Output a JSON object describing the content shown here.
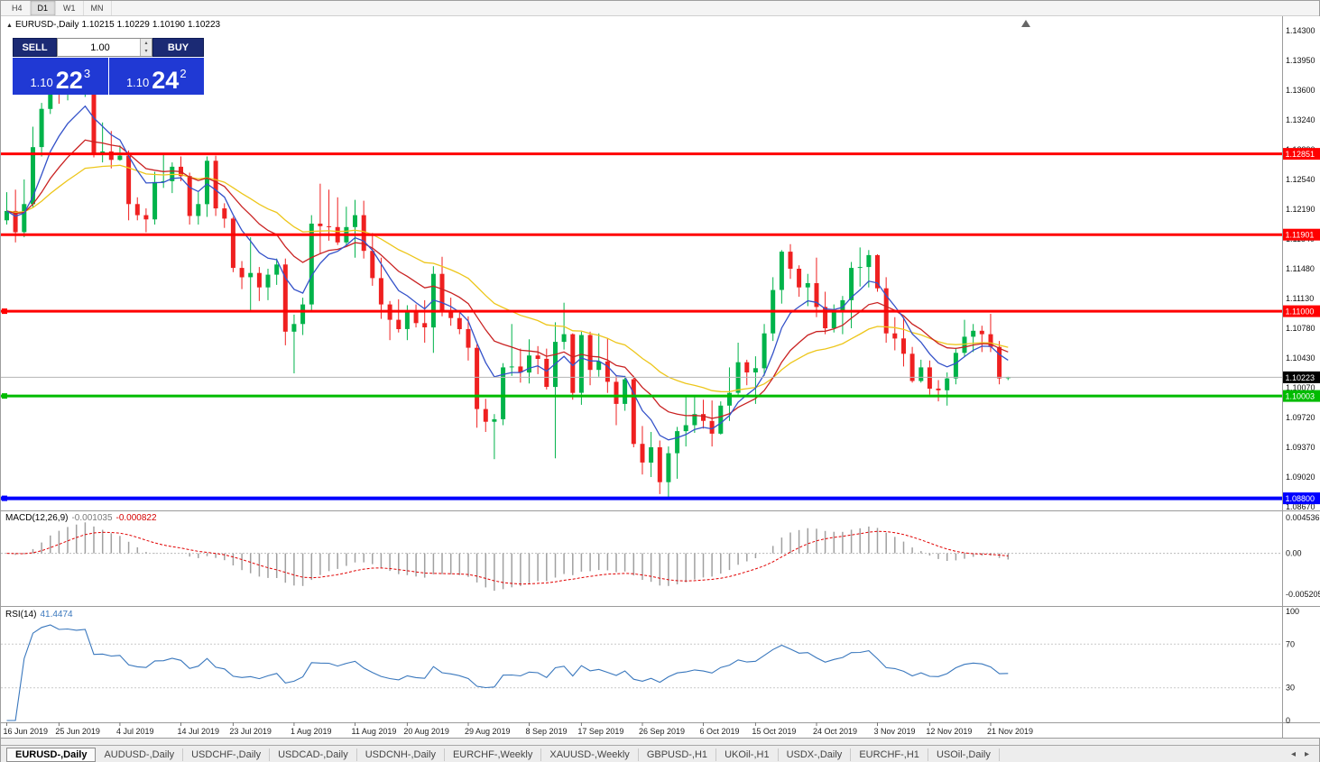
{
  "window": {
    "periods": [
      {
        "label": "H4",
        "active": false
      },
      {
        "label": "D1",
        "active": true
      },
      {
        "label": "W1",
        "active": false
      },
      {
        "label": "MN",
        "active": false
      }
    ]
  },
  "chart": {
    "info": {
      "symbol": "EURUSD-,Daily",
      "open": "1.10215",
      "high": "1.10229",
      "low": "1.10190",
      "close": "1.10223"
    },
    "trade_panel": {
      "sell_label": "SELL",
      "buy_label": "BUY",
      "volume": "1.00",
      "sell_price": {
        "prefix": "1.10",
        "big": "22",
        "sup": "3"
      },
      "buy_price": {
        "prefix": "1.10",
        "big": "24",
        "sup": "2"
      }
    }
  },
  "chart_data": {
    "type": "candlestick",
    "title": "EURUSD-,Daily",
    "colors": {
      "bull": "#00b34a",
      "bear": "#ef2020"
    },
    "price_axis": {
      "top_value": 1.143,
      "label_step": 0.0035,
      "labels": [
        "1.14300",
        "1.13950",
        "1.13600",
        "1.13240",
        "1.12890",
        "1.12540",
        "1.12190",
        "1.11840",
        "1.11480",
        "1.11130",
        "1.10780",
        "1.10430",
        "1.10070",
        "1.09720",
        "1.09370",
        "1.09020",
        "1.08670"
      ]
    },
    "date_ticks": [
      {
        "label": "16 Jun 2019",
        "bar": 0
      },
      {
        "label": "25 Jun 2019",
        "bar": 6
      },
      {
        "label": "4 Jul 2019",
        "bar": 13
      },
      {
        "label": "14 Jul 2019",
        "bar": 20
      },
      {
        "label": "23 Jul 2019",
        "bar": 26
      },
      {
        "label": "1 Aug 2019",
        "bar": 33
      },
      {
        "label": "11 Aug 2019",
        "bar": 40
      },
      {
        "label": "20 Aug 2019",
        "bar": 46
      },
      {
        "label": "29 Aug 2019",
        "bar": 53
      },
      {
        "label": "8 Sep 2019",
        "bar": 60
      },
      {
        "label": "17 Sep 2019",
        "bar": 66
      },
      {
        "label": "26 Sep 2019",
        "bar": 73
      },
      {
        "label": "6 Oct 2019",
        "bar": 80
      },
      {
        "label": "15 Oct 2019",
        "bar": 86
      },
      {
        "label": "24 Oct 2019",
        "bar": 93
      },
      {
        "label": "3 Nov 2019",
        "bar": 100
      },
      {
        "label": "12 Nov 2019",
        "bar": 106
      },
      {
        "label": "21 Nov 2019",
        "bar": 113
      }
    ],
    "ohlc": [
      [
        1.1207,
        1.124,
        1.1202,
        1.1218
      ],
      [
        1.1218,
        1.1243,
        1.1181,
        1.1193
      ],
      [
        1.1193,
        1.1255,
        1.1187,
        1.1226
      ],
      [
        1.1226,
        1.1317,
        1.1222,
        1.1293
      ],
      [
        1.1293,
        1.1345,
        1.1282,
        1.1338
      ],
      [
        1.1338,
        1.138,
        1.1332,
        1.137
      ],
      [
        1.137,
        1.139,
        1.1344,
        1.136
      ],
      [
        1.136,
        1.1382,
        1.1348,
        1.1365
      ],
      [
        1.1365,
        1.138,
        1.1355,
        1.1362
      ],
      [
        1.1362,
        1.1385,
        1.1352,
        1.1372
      ],
      [
        1.1372,
        1.1375,
        1.1281,
        1.1285
      ],
      [
        1.1285,
        1.1322,
        1.1275,
        1.1288
      ],
      [
        1.1288,
        1.1312,
        1.1268,
        1.1278
      ],
      [
        1.1278,
        1.1295,
        1.1277,
        1.1283
      ],
      [
        1.1283,
        1.1289,
        1.1207,
        1.1226
      ],
      [
        1.1226,
        1.1234,
        1.1207,
        1.1213
      ],
      [
        1.1213,
        1.1221,
        1.1193,
        1.1208
      ],
      [
        1.1208,
        1.1264,
        1.1202,
        1.1252
      ],
      [
        1.1252,
        1.1285,
        1.1245,
        1.1253
      ],
      [
        1.1253,
        1.1275,
        1.1239,
        1.127
      ],
      [
        1.127,
        1.1282,
        1.1253,
        1.1259
      ],
      [
        1.1259,
        1.1263,
        1.1202,
        1.1212
      ],
      [
        1.1212,
        1.124,
        1.1202,
        1.1226
      ],
      [
        1.1226,
        1.1282,
        1.1211,
        1.1277
      ],
      [
        1.1277,
        1.1283,
        1.1212,
        1.1221
      ],
      [
        1.1221,
        1.1227,
        1.1198,
        1.1209
      ],
      [
        1.1209,
        1.1211,
        1.1146,
        1.1151
      ],
      [
        1.1151,
        1.1159,
        1.1126,
        1.114
      ],
      [
        1.114,
        1.1187,
        1.1101,
        1.1145
      ],
      [
        1.1145,
        1.1152,
        1.1112,
        1.1128
      ],
      [
        1.1128,
        1.115,
        1.1113,
        1.1143
      ],
      [
        1.1143,
        1.1162,
        1.1131,
        1.1155
      ],
      [
        1.1155,
        1.1162,
        1.106,
        1.1076
      ],
      [
        1.1076,
        1.1096,
        1.1027,
        1.1085
      ],
      [
        1.1085,
        1.1116,
        1.1072,
        1.1108
      ],
      [
        1.1108,
        1.1213,
        1.1101,
        1.1203
      ],
      [
        1.1203,
        1.125,
        1.1167,
        1.12
      ],
      [
        1.12,
        1.1243,
        1.1183,
        1.1199
      ],
      [
        1.1199,
        1.1234,
        1.1178,
        1.1181
      ],
      [
        1.1181,
        1.1223,
        1.1178,
        1.1199
      ],
      [
        1.1199,
        1.1231,
        1.1163,
        1.1213
      ],
      [
        1.1213,
        1.123,
        1.1162,
        1.1171
      ],
      [
        1.1171,
        1.1192,
        1.113,
        1.1139
      ],
      [
        1.1139,
        1.1163,
        1.1091,
        1.1108
      ],
      [
        1.1108,
        1.1112,
        1.1066,
        1.109
      ],
      [
        1.109,
        1.1114,
        1.1075,
        1.1079
      ],
      [
        1.1079,
        1.1107,
        1.1066,
        1.11
      ],
      [
        1.11,
        1.1108,
        1.1081,
        1.1086
      ],
      [
        1.1086,
        1.1113,
        1.1063,
        1.1081
      ],
      [
        1.1081,
        1.1153,
        1.1051,
        1.1144
      ],
      [
        1.1144,
        1.1164,
        1.1094,
        1.1101
      ],
      [
        1.1101,
        1.1116,
        1.1083,
        1.1092
      ],
      [
        1.1092,
        1.1098,
        1.1073,
        1.1079
      ],
      [
        1.1079,
        1.1094,
        1.1042,
        1.1057
      ],
      [
        1.1057,
        1.1061,
        1.0963,
        1.0985
      ],
      [
        1.0985,
        1.0997,
        1.0958,
        1.097
      ],
      [
        1.097,
        1.0979,
        1.0926,
        1.0973
      ],
      [
        1.0973,
        1.1039,
        1.0966,
        1.1034
      ],
      [
        1.1034,
        1.1085,
        1.1024,
        1.1035
      ],
      [
        1.1035,
        1.1056,
        1.1016,
        1.1028
      ],
      [
        1.1028,
        1.1067,
        1.1015,
        1.1048
      ],
      [
        1.1048,
        1.1059,
        1.1026,
        1.1044
      ],
      [
        1.1044,
        1.1056,
        1.1008,
        1.1011
      ],
      [
        1.1011,
        1.1087,
        1.0927,
        1.1064
      ],
      [
        1.1064,
        1.111,
        1.1055,
        1.1073
      ],
      [
        1.1073,
        1.1074,
        1.0996,
        1.1004
      ],
      [
        1.1004,
        1.1076,
        1.099,
        1.1072
      ],
      [
        1.1072,
        1.1076,
        1.1013,
        1.1031
      ],
      [
        1.1031,
        1.1074,
        1.1023,
        1.1041
      ],
      [
        1.1041,
        1.1068,
        1.1004,
        1.1017
      ],
      [
        1.1017,
        1.1025,
        1.0966,
        1.0991
      ],
      [
        1.0991,
        1.1024,
        1.0983,
        1.102
      ],
      [
        1.102,
        1.1024,
        1.094,
        1.0944
      ],
      [
        1.0944,
        1.0965,
        1.0908,
        1.0922
      ],
      [
        1.0922,
        1.0958,
        1.0905,
        1.094
      ],
      [
        1.094,
        1.0948,
        1.0885,
        1.0899
      ],
      [
        1.0899,
        1.0941,
        1.0879,
        1.0933
      ],
      [
        1.0933,
        1.0964,
        1.0903,
        1.0959
      ],
      [
        1.0959,
        1.0999,
        1.0941,
        1.0966
      ],
      [
        1.0966,
        1.0999,
        1.0957,
        1.0979
      ],
      [
        1.0979,
        1.0996,
        1.0962,
        1.0971
      ],
      [
        1.0971,
        1.0995,
        1.0941,
        1.0956
      ],
      [
        1.0956,
        1.0994,
        1.0955,
        1.0989
      ],
      [
        1.0989,
        1.1034,
        1.0971,
        1.1004
      ],
      [
        1.1004,
        1.1063,
        1.1002,
        1.104
      ],
      [
        1.104,
        1.1043,
        1.1013,
        1.1028
      ],
      [
        1.1028,
        1.1047,
        1.0991,
        1.1033
      ],
      [
        1.1033,
        1.1085,
        1.1024,
        1.1074
      ],
      [
        1.1074,
        1.114,
        1.1065,
        1.1125
      ],
      [
        1.1125,
        1.1172,
        1.1109,
        1.117
      ],
      [
        1.117,
        1.1179,
        1.1138,
        1.115
      ],
      [
        1.115,
        1.1154,
        1.1117,
        1.1128
      ],
      [
        1.1128,
        1.1144,
        1.1106,
        1.1133
      ],
      [
        1.1133,
        1.1163,
        1.1093,
        1.1105
      ],
      [
        1.1105,
        1.1123,
        1.1073,
        1.108
      ],
      [
        1.108,
        1.1108,
        1.1075,
        1.1099
      ],
      [
        1.1099,
        1.1118,
        1.1073,
        1.1113
      ],
      [
        1.1113,
        1.1158,
        1.108,
        1.1151
      ],
      [
        1.1151,
        1.1175,
        1.1129,
        1.1152
      ],
      [
        1.1152,
        1.1172,
        1.1128,
        1.1166
      ],
      [
        1.1166,
        1.1167,
        1.1123,
        1.1127
      ],
      [
        1.1127,
        1.114,
        1.1063,
        1.1074
      ],
      [
        1.1074,
        1.1093,
        1.1054,
        1.1068
      ],
      [
        1.1068,
        1.1093,
        1.1035,
        1.105
      ],
      [
        1.105,
        1.1058,
        1.1016,
        1.1018
      ],
      [
        1.1018,
        1.1043,
        1.1016,
        1.1034
      ],
      [
        1.1034,
        1.1042,
        1.1002,
        1.1009
      ],
      [
        1.1009,
        1.1019,
        1.0994,
        1.1007
      ],
      [
        1.1007,
        1.1028,
        1.0989,
        1.1021
      ],
      [
        1.1021,
        1.1057,
        1.1014,
        1.1051
      ],
      [
        1.1051,
        1.109,
        1.1046,
        1.107
      ],
      [
        1.107,
        1.1085,
        1.1052,
        1.1077
      ],
      [
        1.1077,
        1.1083,
        1.1052,
        1.1073
      ],
      [
        1.1073,
        1.1097,
        1.1052,
        1.1058
      ],
      [
        1.1058,
        1.1065,
        1.1014,
        1.1021
      ],
      [
        1.10215,
        1.10229,
        1.1019,
        1.10223
      ]
    ],
    "moving_averages": [
      {
        "name": "fast",
        "period": 7,
        "color": "#3452c9"
      },
      {
        "name": "medium",
        "period": 15,
        "color": "#c92222"
      },
      {
        "name": "slow",
        "period": 30,
        "color": "#edc61b"
      }
    ],
    "hlines": [
      {
        "price": 1.12851,
        "label": "1.12851",
        "color": "#ff0000",
        "width": 3,
        "marker": false
      },
      {
        "price": 1.11901,
        "label": "1.11901",
        "color": "#ff0000",
        "width": 3,
        "marker": false
      },
      {
        "price": 1.11,
        "label": "1.11000",
        "color": "#ff0000",
        "width": 3,
        "marker": true
      },
      {
        "price": 1.10003,
        "label": "1.10003",
        "color": "#00bb00",
        "width": 3,
        "marker": true
      },
      {
        "price": 1.088,
        "label": "1.08800",
        "color": "#0000ff",
        "width": 4,
        "marker": true
      }
    ],
    "current_price": {
      "value": 1.10223,
      "label": "1.10223"
    },
    "indicators": {
      "macd": {
        "label": "MACD(12,26,9)",
        "value_main": "-0.001035",
        "value_signal": "-0.000822",
        "fast": 12,
        "slow": 26,
        "signal": 9,
        "scale_max": 0.004536,
        "scale_min": -0.005205,
        "scale_labels": [
          "0.004536",
          "0.00",
          "-0.005205"
        ],
        "histogram_color": "#a0a0a0",
        "signal_color": "#e00000"
      },
      "rsi": {
        "label": "RSI(14)",
        "value_text": "41.4474",
        "period": 14,
        "levels": [
          70,
          30
        ],
        "scale_labels": [
          100,
          70,
          30,
          0
        ],
        "line_color": "#3977bd"
      }
    }
  },
  "tabs": [
    {
      "label": "EURUSD-,Daily",
      "active": true
    },
    {
      "label": "AUDUSD-,Daily",
      "active": false
    },
    {
      "label": "USDCHF-,Daily",
      "active": false
    },
    {
      "label": "USDCAD-,Daily",
      "active": false
    },
    {
      "label": "USDCNH-,Daily",
      "active": false
    },
    {
      "label": "EURCHF-,Weekly",
      "active": false
    },
    {
      "label": "XAUUSD-,Weekly",
      "active": false
    },
    {
      "label": "GBPUSD-,H1",
      "active": false
    },
    {
      "label": "UKOil-,H1",
      "active": false
    },
    {
      "label": "USDX-,Daily",
      "active": false
    },
    {
      "label": "EURCHF-,H1",
      "active": false
    },
    {
      "label": "USOil-,Daily",
      "active": false
    }
  ]
}
